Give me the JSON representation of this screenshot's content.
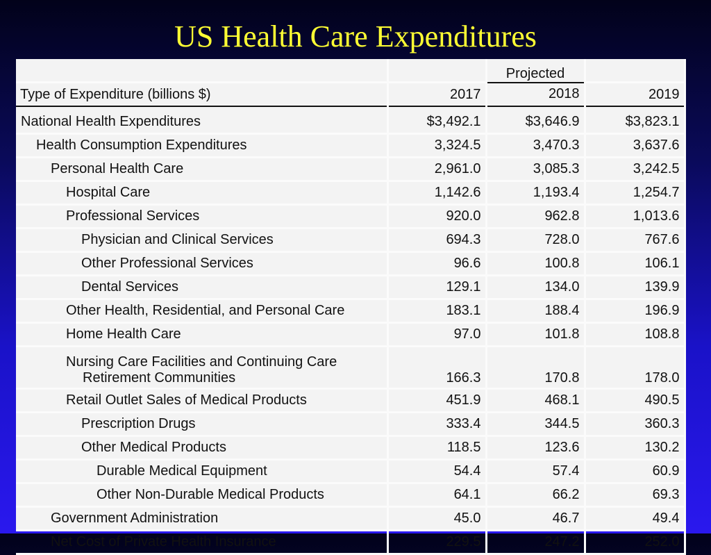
{
  "title": "US Health Care Expenditures",
  "table": {
    "projected_label": "Projected",
    "type_header": "Type of Expenditure (billions $)",
    "years": [
      "2017",
      "2018",
      "2019"
    ],
    "rows": [
      {
        "label": "National Health Expenditures",
        "level": 0,
        "v2017": "$3,492.1",
        "v2018": "$3,646.9",
        "v2019": "$3,823.1"
      },
      {
        "label": "Health Consumption Expenditures",
        "level": 1,
        "v2017": "3,324.5",
        "v2018": "3,470.3",
        "v2019": "3,637.6"
      },
      {
        "label": "Personal Health Care",
        "level": 2,
        "v2017": "2,961.0",
        "v2018": "3,085.3",
        "v2019": "3,242.5"
      },
      {
        "label": "Hospital Care",
        "level": 3,
        "v2017": "1,142.6",
        "v2018": "1,193.4",
        "v2019": "1,254.7"
      },
      {
        "label": "Professional Services",
        "level": 3,
        "v2017": "920.0",
        "v2018": "962.8",
        "v2019": "1,013.6"
      },
      {
        "label": "Physician and Clinical Services",
        "level": 4,
        "v2017": "694.3",
        "v2018": "728.0",
        "v2019": "767.6"
      },
      {
        "label": "Other Professional Services",
        "level": 4,
        "v2017": "96.6",
        "v2018": "100.8",
        "v2019": "106.1"
      },
      {
        "label": "Dental Services",
        "level": 4,
        "v2017": "129.1",
        "v2018": "134.0",
        "v2019": "139.9"
      },
      {
        "label": "Other Health, Residential, and Personal Care",
        "level": 3,
        "v2017": "183.1",
        "v2018": "188.4",
        "v2019": "196.9"
      },
      {
        "label": "Home Health Care",
        "level": 3,
        "v2017": "97.0",
        "v2018": "101.8",
        "v2019": "108.8"
      },
      {
        "label": "Nursing Care Facilities and Continuing Care",
        "label2": "Retirement Communities",
        "level": 3,
        "v2017": "166.3",
        "v2018": "170.8",
        "v2019": "178.0"
      },
      {
        "label": "Retail Outlet Sales of Medical Products",
        "level": 3,
        "v2017": "451.9",
        "v2018": "468.1",
        "v2019": "490.5"
      },
      {
        "label": "Prescription Drugs",
        "level": 4,
        "v2017": "333.4",
        "v2018": "344.5",
        "v2019": "360.3"
      },
      {
        "label": "Other Medical Products",
        "level": 4,
        "v2017": "118.5",
        "v2018": "123.6",
        "v2019": "130.2"
      },
      {
        "label": "Durable Medical Equipment",
        "level": 5,
        "v2017": "54.4",
        "v2018": "57.4",
        "v2019": "60.9"
      },
      {
        "label": "Other Non-Durable Medical Products",
        "level": 5,
        "v2017": "64.1",
        "v2018": "66.2",
        "v2019": "69.3"
      },
      {
        "label": "Government Administration",
        "level": 2,
        "v2017": "45.0",
        "v2018": "46.7",
        "v2019": "49.4"
      },
      {
        "label": "Net Cost of Private Health Insurance",
        "level": 2,
        "v2017": "229.5",
        "v2018": "247.2",
        "v2019": "252.0"
      }
    ]
  }
}
